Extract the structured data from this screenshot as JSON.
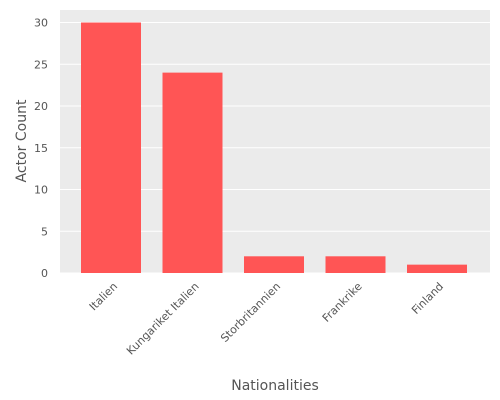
{
  "chart_data": {
    "type": "bar",
    "categories": [
      "Italien",
      "Kungariket Italien",
      "Storbritannien",
      "Frankrike",
      "Finland"
    ],
    "values": [
      30,
      24,
      2,
      2,
      1
    ],
    "xlabel": "Nationalities",
    "ylabel": "Actor Count",
    "ylim": [
      0,
      31.5
    ],
    "yticks": [
      0,
      5,
      10,
      15,
      20,
      25,
      30
    ],
    "grid": true,
    "legend": "none",
    "colors": {
      "bar": "#ff5555",
      "plot_background": "#ebebeb",
      "grid": "#ffffff",
      "text": "#555555"
    }
  }
}
